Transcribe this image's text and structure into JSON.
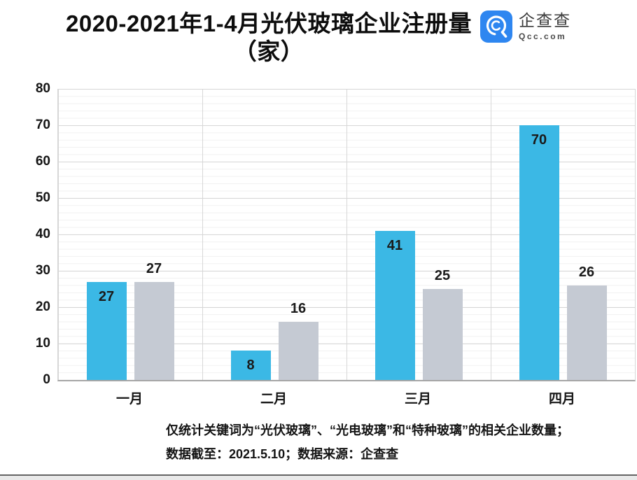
{
  "title": {
    "line1": "2020-2021年1-4月光伏玻璃企业注册量",
    "line2": "（家）"
  },
  "logo": {
    "name": "企查查",
    "domain": "Qcc.com",
    "badge_color": "#2e86f0"
  },
  "chart_data": {
    "type": "bar",
    "title": "2020-2021年1-4月光伏玻璃企业注册量（家）",
    "categories": [
      "一月",
      "二月",
      "三月",
      "四月"
    ],
    "series": [
      {
        "name": "blue-series",
        "color": "#3bb8e5",
        "values": [
          27,
          8,
          41,
          70
        ],
        "label_position": "inside-top"
      },
      {
        "name": "gray-series",
        "color": "#c5cad3",
        "values": [
          27,
          16,
          25,
          26
        ],
        "label_position": "above"
      }
    ],
    "xlabel": "",
    "ylabel": "",
    "ylim": [
      0,
      80
    ],
    "yticks": [
      80,
      70,
      60,
      50,
      40,
      30,
      20,
      10,
      0
    ],
    "grid": "horizontal major every 10, minor every 2, vertical category separators",
    "legend": "none"
  },
  "footnote": {
    "line1": "仅统计关键词为“光伏玻璃”、“光电玻璃”和“特种玻璃”的相关企业数量；",
    "line2": "数据截至：2021.5.10；数据来源：企查查"
  }
}
